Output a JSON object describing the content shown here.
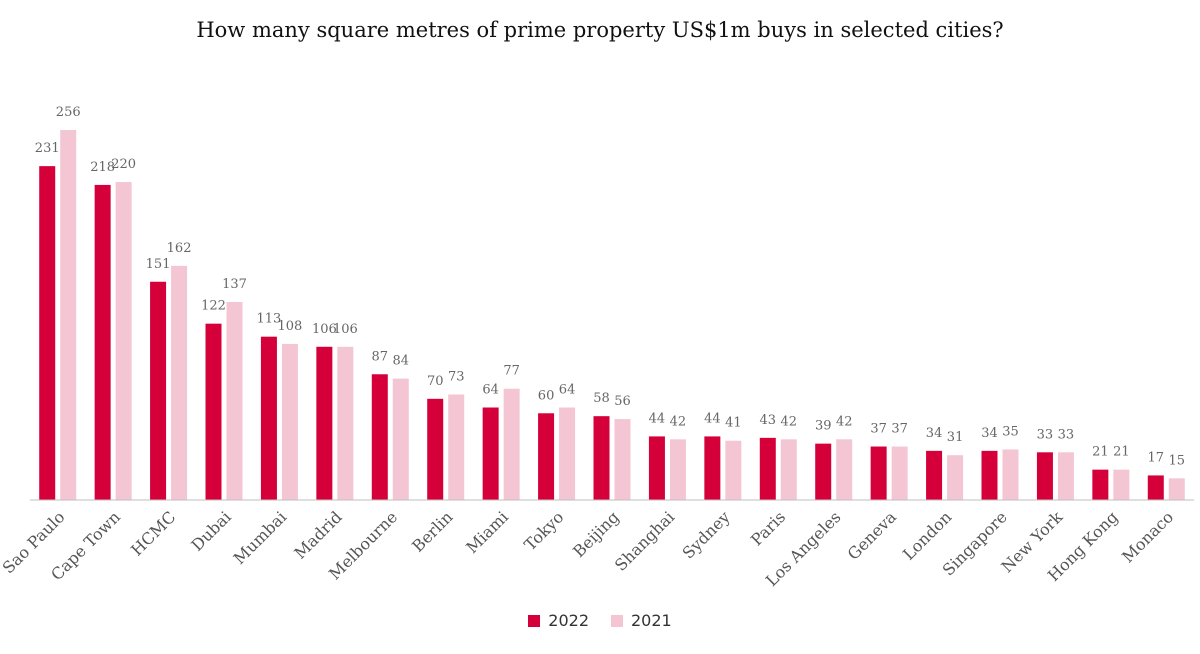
{
  "chart_data": {
    "type": "bar",
    "title": "How many square metres of prime property US$1m buys in selected cities?",
    "categories": [
      "Sao Paulo",
      "Cape Town",
      "HCMC",
      "Dubai",
      "Mumbai",
      "Madrid",
      "Melbourne",
      "Berlin",
      "Miami",
      "Tokyo",
      "Beijing",
      "Shanghai",
      "Sydney",
      "Paris",
      "Los Angeles",
      "Geneva",
      "London",
      "Singapore",
      "New York",
      "Hong Kong",
      "Monaco"
    ],
    "series": [
      {
        "name": "2022",
        "color": "#d5003a",
        "values": [
          231,
          218,
          151,
          122,
          113,
          106,
          87,
          70,
          64,
          60,
          58,
          44,
          44,
          43,
          39,
          37,
          34,
          34,
          33,
          21,
          17
        ]
      },
      {
        "name": "2021",
        "color": "#f4c6d3",
        "values": [
          256,
          220,
          162,
          137,
          108,
          106,
          84,
          73,
          77,
          64,
          56,
          42,
          41,
          42,
          42,
          37,
          31,
          35,
          33,
          21,
          15
        ]
      }
    ],
    "ylim": [
      0,
      256
    ],
    "legend_position": "bottom",
    "grid": false,
    "xlabel": "",
    "ylabel": ""
  }
}
